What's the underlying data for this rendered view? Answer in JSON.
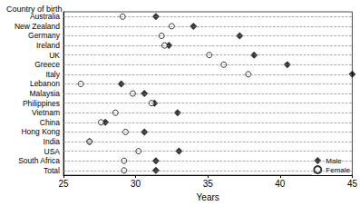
{
  "chart_data": {
    "type": "scatter",
    "orientation": "horizontal",
    "x_label": "Years",
    "y_label": "Country of birth",
    "categories": [
      "Australia",
      "New Zealand",
      "Germany",
      "Ireland",
      "UK",
      "Greece",
      "Italy",
      "Lebanon",
      "Malaysia",
      "Philippines",
      "Vietnam",
      "China",
      "Hong Kong",
      "India",
      "USA",
      "South Africa",
      "Total"
    ],
    "series": [
      {
        "name": "Male",
        "color": "#000000",
        "marker": "diamond",
        "values": [
          31.4,
          34.0,
          37.2,
          32.3,
          38.2,
          40.5,
          45.0,
          29.0,
          30.6,
          31.3,
          32.9,
          27.9,
          30.6,
          26.8,
          33.0,
          31.4,
          31.4
        ]
      },
      {
        "name": "Female",
        "color": "#000000",
        "marker": "open_circle",
        "values": [
          29.1,
          32.5,
          31.8,
          32.0,
          35.1,
          36.1,
          37.8,
          26.2,
          29.8,
          31.1,
          28.6,
          27.6,
          29.3,
          26.8,
          30.2,
          29.2,
          29.2
        ]
      }
    ],
    "xlim": [
      25,
      45
    ],
    "xticks": [
      25,
      30,
      35,
      40,
      45
    ],
    "grid": true,
    "legend": "lower right"
  }
}
